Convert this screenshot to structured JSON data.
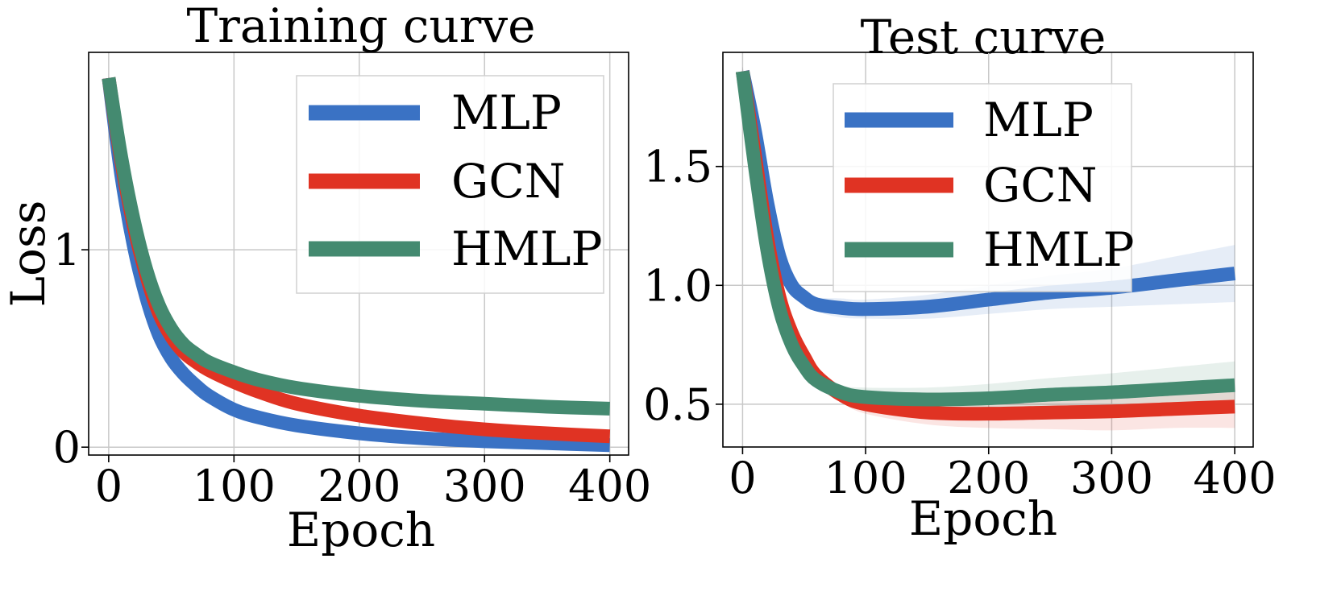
{
  "chart_data": [
    {
      "type": "line",
      "title": "Training curve",
      "xlabel": "Epoch",
      "ylabel": "Loss",
      "xlim": [
        -16,
        415
      ],
      "ylim": [
        -0.04,
        2.0
      ],
      "xticks": [
        0,
        100,
        200,
        300,
        400
      ],
      "xtick_labels": [
        "0",
        "100",
        "200",
        "300",
        "400"
      ],
      "yticks": [
        0,
        1
      ],
      "ytick_labels": [
        "0",
        "1"
      ],
      "grid": true,
      "legend": {
        "position": "top-right",
        "entries": [
          "MLP",
          "GCN",
          "HMLP"
        ]
      },
      "series": [
        {
          "name": "MLP",
          "color": "#3a72c4",
          "x": [
            0,
            10,
            20,
            30,
            40,
            50,
            60,
            70,
            80,
            100,
            120,
            150,
            200,
            250,
            300,
            350,
            400
          ],
          "y": [
            1.87,
            1.38,
            1.02,
            0.76,
            0.57,
            0.45,
            0.37,
            0.31,
            0.26,
            0.19,
            0.15,
            0.11,
            0.07,
            0.045,
            0.03,
            0.02,
            0.01
          ]
        },
        {
          "name": "GCN",
          "color": "#e03323",
          "x": [
            0,
            10,
            20,
            30,
            40,
            50,
            60,
            70,
            80,
            100,
            120,
            150,
            200,
            250,
            300,
            350,
            400
          ],
          "y": [
            1.87,
            1.45,
            1.12,
            0.87,
            0.68,
            0.56,
            0.48,
            0.43,
            0.39,
            0.33,
            0.28,
            0.22,
            0.16,
            0.12,
            0.09,
            0.07,
            0.055
          ]
        },
        {
          "name": "HMLP",
          "color": "#448a70",
          "x": [
            0,
            10,
            20,
            30,
            40,
            50,
            60,
            70,
            80,
            100,
            120,
            150,
            200,
            250,
            300,
            350,
            400
          ],
          "y": [
            1.87,
            1.47,
            1.15,
            0.9,
            0.72,
            0.6,
            0.52,
            0.47,
            0.43,
            0.38,
            0.34,
            0.3,
            0.26,
            0.235,
            0.22,
            0.205,
            0.195
          ]
        }
      ]
    },
    {
      "type": "line",
      "title": "Test curve",
      "xlabel": "Epoch",
      "ylabel": "",
      "xlim": [
        -16,
        415
      ],
      "ylim": [
        0.32,
        1.98
      ],
      "xticks": [
        0,
        100,
        200,
        300,
        400
      ],
      "xtick_labels": [
        "0",
        "100",
        "200",
        "300",
        "400"
      ],
      "yticks": [
        0.5,
        1.0,
        1.5
      ],
      "ytick_labels": [
        "0.5",
        "1.0",
        "1.5"
      ],
      "grid": true,
      "legend": {
        "position": "top-center",
        "entries": [
          "MLP",
          "GCN",
          "HMLP"
        ]
      },
      "series": [
        {
          "name": "MLP",
          "color": "#3a72c4",
          "x": [
            0,
            10,
            20,
            30,
            40,
            50,
            60,
            80,
            100,
            150,
            200,
            250,
            300,
            350,
            400
          ],
          "y": [
            1.9,
            1.65,
            1.35,
            1.12,
            1.0,
            0.95,
            0.92,
            0.905,
            0.9,
            0.91,
            0.94,
            0.97,
            0.99,
            1.02,
            1.05
          ],
          "band": [
            0.02,
            0.02,
            0.02,
            0.02,
            0.03,
            0.03,
            0.03,
            0.04,
            0.04,
            0.05,
            0.06,
            0.07,
            0.08,
            0.1,
            0.12
          ]
        },
        {
          "name": "GCN",
          "color": "#e03323",
          "x": [
            0,
            10,
            20,
            30,
            40,
            50,
            60,
            80,
            100,
            150,
            200,
            250,
            300,
            350,
            400
          ],
          "y": [
            1.9,
            1.55,
            1.2,
            0.95,
            0.8,
            0.7,
            0.62,
            0.54,
            0.5,
            0.465,
            0.46,
            0.465,
            0.47,
            0.48,
            0.49
          ],
          "band": [
            0.02,
            0.02,
            0.02,
            0.02,
            0.02,
            0.03,
            0.03,
            0.03,
            0.04,
            0.05,
            0.06,
            0.07,
            0.08,
            0.08,
            0.09
          ]
        },
        {
          "name": "HMLP",
          "color": "#448a70",
          "x": [
            0,
            10,
            20,
            30,
            40,
            50,
            60,
            80,
            100,
            150,
            200,
            250,
            300,
            350,
            400
          ],
          "y": [
            1.9,
            1.5,
            1.15,
            0.9,
            0.75,
            0.66,
            0.6,
            0.55,
            0.53,
            0.52,
            0.525,
            0.54,
            0.55,
            0.565,
            0.58
          ],
          "band": [
            0.02,
            0.02,
            0.02,
            0.02,
            0.02,
            0.03,
            0.03,
            0.03,
            0.04,
            0.05,
            0.06,
            0.07,
            0.08,
            0.09,
            0.1
          ]
        }
      ]
    }
  ]
}
